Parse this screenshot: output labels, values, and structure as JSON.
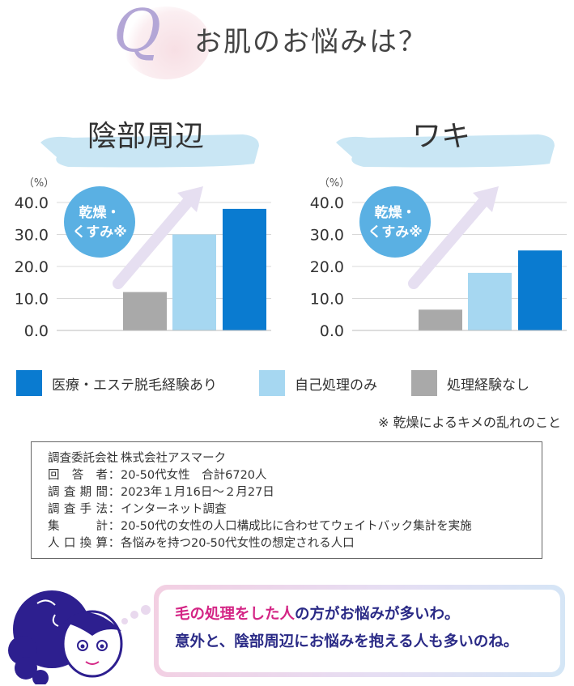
{
  "header": {
    "q_letter": "Q",
    "question": "お肌のお悩みは？"
  },
  "chart_data": [
    {
      "type": "bar",
      "title": "陰部周辺",
      "unit_label": "（%）",
      "ylim": [
        0,
        40
      ],
      "yticks": [
        "40.0",
        "30.0",
        "20.0",
        "10.0",
        "0.0"
      ],
      "categories": [
        "処理経験なし",
        "自己処理のみ",
        "医療・エステ脱毛経験あり"
      ],
      "values": [
        12,
        30,
        38
      ],
      "badge": [
        "乾燥・",
        "くすみ※"
      ]
    },
    {
      "type": "bar",
      "title": "ワキ",
      "unit_label": "（%）",
      "ylim": [
        0,
        40
      ],
      "yticks": [
        "40.0",
        "30.0",
        "20.0",
        "10.0",
        "0.0"
      ],
      "categories": [
        "処理経験なし",
        "自己処理のみ",
        "医療・エステ脱毛経験あり"
      ],
      "values": [
        6.5,
        18,
        25
      ],
      "badge": [
        "乾燥・",
        "くすみ※"
      ]
    }
  ],
  "legend": [
    {
      "label": "医療・エステ脱毛経験あり",
      "color": "#0a7bd0"
    },
    {
      "label": "自己処理のみ",
      "color": "#a6d7f1"
    },
    {
      "label": "処理経験なし",
      "color": "#a9a9a9"
    }
  ],
  "colors": {
    "accent_blue": "#0a7bd0",
    "light_blue": "#a6d7f1",
    "gray": "#a9a9a9",
    "badge": "#5ab0e3",
    "arrow": "#e6dff1",
    "brush": "#bfe2f2"
  },
  "footnote": "※ 乾燥によるキメの乱れのこと",
  "survey": [
    {
      "key": "調査委託会社",
      "value": "株式会社アスマーク"
    },
    {
      "key": "回答者",
      "value": "20-50代女性　合計6720人"
    },
    {
      "key": "調査期間",
      "value": "2023年１月16日〜２月27日"
    },
    {
      "key": "調査手法",
      "value": "インターネット調査"
    },
    {
      "key": "集計",
      "value": "20-50代の女性の人口構成比に合わせてウェイトバック集計を実施"
    },
    {
      "key": "人口換算",
      "value": "各悩みを持つ20-50代女性の想定される人口"
    }
  ],
  "survey_sep": "：",
  "speech": {
    "line1": [
      {
        "text": "毛の処理をした人",
        "color": "pink"
      },
      {
        "text": "の方がお悩みが多いわ。",
        "color": "navy"
      }
    ],
    "line2": [
      {
        "text": "意外と、陰部周辺にお悩みを抱える人も多いのね。",
        "color": "navy"
      }
    ]
  }
}
